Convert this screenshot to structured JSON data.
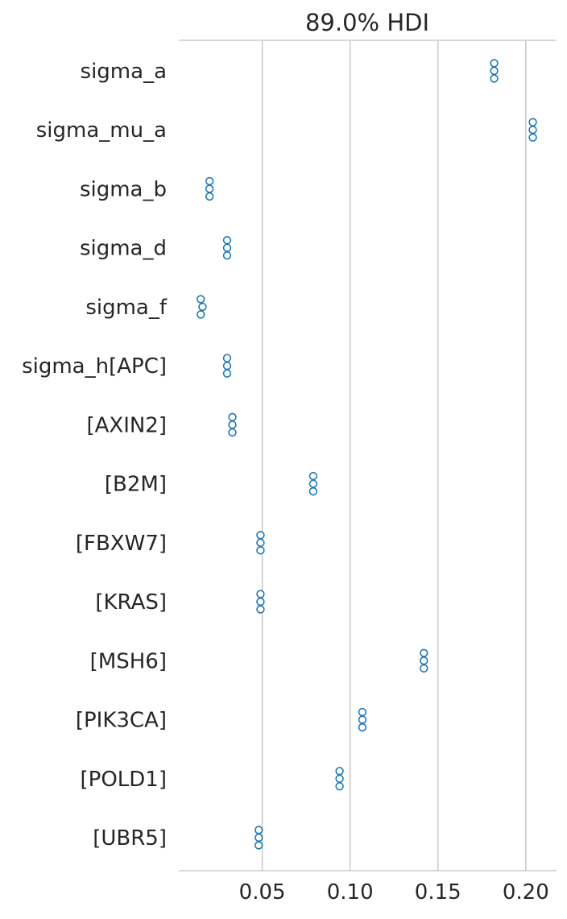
{
  "chart_data": {
    "type": "scatter",
    "title": "89.0% HDI",
    "xlabel": "",
    "ylabel": "",
    "xlim": [
      0.0025,
      0.2175
    ],
    "grid": true,
    "marker_color": "#1f77b4",
    "x_ticks": [
      {
        "value": 0.05,
        "label": "0.05"
      },
      {
        "value": 0.1,
        "label": "0.10"
      },
      {
        "value": 0.15,
        "label": "0.15"
      },
      {
        "value": 0.2,
        "label": "0.20"
      }
    ],
    "rows": [
      {
        "label": "sigma_a",
        "values": [
          0.182,
          0.182,
          0.182
        ]
      },
      {
        "label": "sigma_mu_a",
        "values": [
          0.204,
          0.204,
          0.204
        ]
      },
      {
        "label": "sigma_b",
        "values": [
          0.02,
          0.02,
          0.02
        ]
      },
      {
        "label": "sigma_d",
        "values": [
          0.03,
          0.03,
          0.03
        ]
      },
      {
        "label": "sigma_f",
        "values": [
          0.015,
          0.016,
          0.015
        ]
      },
      {
        "label": "sigma_h[APC]",
        "values": [
          0.03,
          0.03,
          0.03
        ]
      },
      {
        "label": "[AXIN2]",
        "values": [
          0.033,
          0.033,
          0.033
        ]
      },
      {
        "label": "[B2M]",
        "values": [
          0.079,
          0.079,
          0.079
        ]
      },
      {
        "label": "[FBXW7]",
        "values": [
          0.049,
          0.049,
          0.049
        ]
      },
      {
        "label": "[KRAS]",
        "values": [
          0.049,
          0.049,
          0.049
        ]
      },
      {
        "label": "[MSH6]",
        "values": [
          0.142,
          0.142,
          0.142
        ]
      },
      {
        "label": "[PIK3CA]",
        "values": [
          0.107,
          0.107,
          0.107
        ]
      },
      {
        "label": "[POLD1]",
        "values": [
          0.094,
          0.094,
          0.094
        ]
      },
      {
        "label": "[UBR5]",
        "values": [
          0.048,
          0.048,
          0.048
        ]
      }
    ]
  }
}
